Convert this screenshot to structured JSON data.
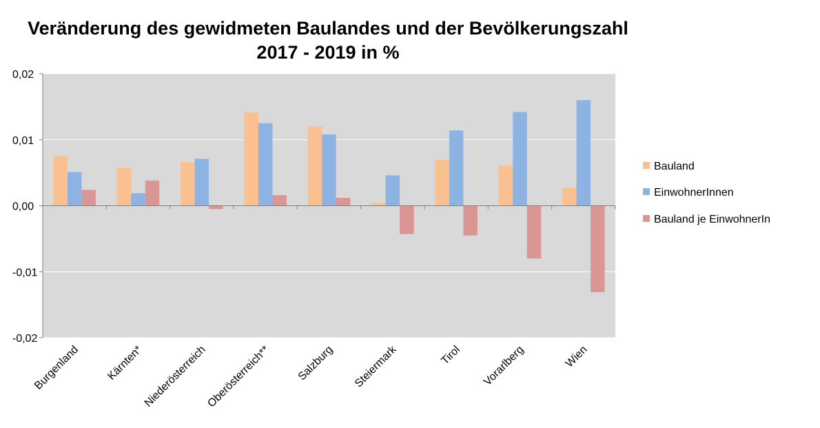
{
  "chart_data": {
    "type": "bar",
    "title_lines": [
      "Veränderung des gewidmeten Baulandes und der Bevölkerungszahl",
      "2017 - 2019 in %"
    ],
    "categories": [
      "Burgenland",
      "Kärnten*",
      "Niederösterreich",
      "Oberösterreich**",
      "Salzburg",
      "Steiermark",
      "Tirol",
      "Vorarlberg",
      "Wien"
    ],
    "series": [
      {
        "name": "Bauland",
        "color": "#FAC090",
        "values": [
          0.0075,
          0.0057,
          0.0066,
          0.0141,
          0.012,
          0.0004,
          0.0069,
          0.0061,
          0.0027
        ]
      },
      {
        "name": "EinwohnerInnen",
        "color": "#8DB3E2",
        "values": [
          0.0051,
          0.0019,
          0.0071,
          0.0125,
          0.0108,
          0.0046,
          0.0114,
          0.0142,
          0.016
        ]
      },
      {
        "name": "Bauland je EinwohnerIn",
        "color": "#D99694",
        "values": [
          0.0024,
          0.0038,
          -0.0005,
          0.0016,
          0.0012,
          -0.0043,
          -0.0045,
          -0.008,
          -0.0131
        ]
      }
    ],
    "ylim": [
      -0.02,
      0.02
    ],
    "yticks": [
      0.02,
      0.01,
      0.0,
      -0.01,
      -0.02
    ],
    "ytick_labels": [
      "0,02",
      "0,01",
      "0,00",
      "-0,01",
      "-0,02"
    ],
    "grid": true,
    "legend_position": "right",
    "plot_background": "#D9D9D9"
  }
}
